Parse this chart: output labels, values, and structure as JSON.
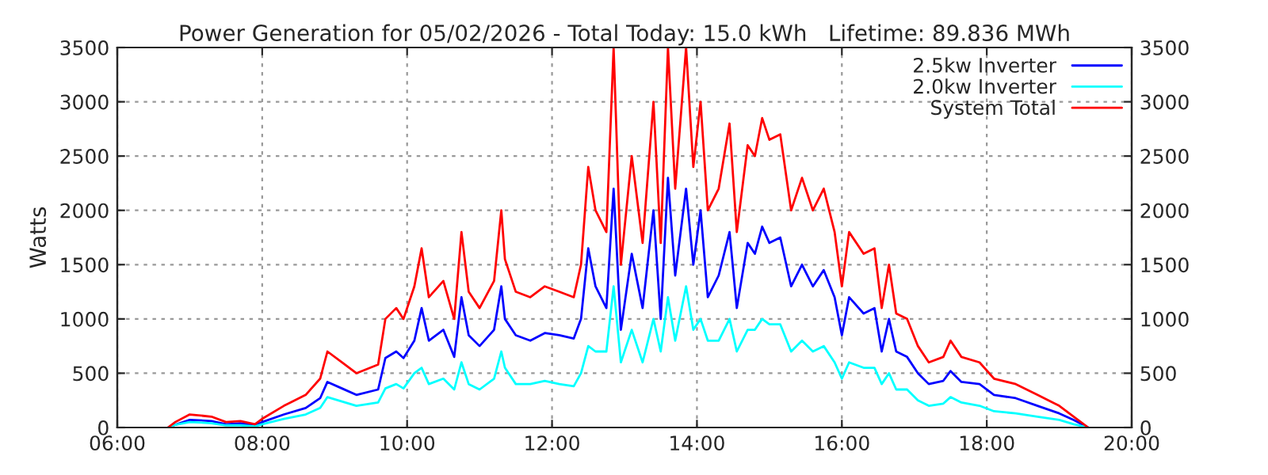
{
  "chart_data": {
    "type": "line",
    "title": "Power Generation for 05/02/2026 - Total Today: 15.0 kWh   Lifetime: 89.836 MWh",
    "ylabel": "Watts",
    "x": [
      6.7,
      6.8,
      7.0,
      7.3,
      7.5,
      7.7,
      7.9,
      8.0,
      8.3,
      8.6,
      8.8,
      8.9,
      9.1,
      9.3,
      9.6,
      9.7,
      9.85,
      9.95,
      10.1,
      10.2,
      10.3,
      10.5,
      10.65,
      10.75,
      10.85,
      11.0,
      11.2,
      11.3,
      11.35,
      11.5,
      11.7,
      11.9,
      12.1,
      12.3,
      12.4,
      12.5,
      12.6,
      12.75,
      12.85,
      12.95,
      13.1,
      13.25,
      13.4,
      13.5,
      13.6,
      13.7,
      13.85,
      13.95,
      14.05,
      14.15,
      14.3,
      14.45,
      14.55,
      14.7,
      14.8,
      14.9,
      15.0,
      15.15,
      15.3,
      15.45,
      15.6,
      15.75,
      15.9,
      16.0,
      16.1,
      16.3,
      16.45,
      16.55,
      16.65,
      16.75,
      16.9,
      17.05,
      17.2,
      17.4,
      17.5,
      17.65,
      17.9,
      18.1,
      18.4,
      18.7,
      19.0,
      19.2,
      19.4
    ],
    "series": [
      {
        "name": "2.5kw Inverter",
        "color": "#0000ff",
        "values": [
          0,
          25,
          70,
          60,
          30,
          40,
          20,
          50,
          120,
          180,
          270,
          420,
          360,
          300,
          350,
          640,
          700,
          640,
          800,
          1100,
          800,
          900,
          650,
          1200,
          850,
          750,
          900,
          1300,
          1000,
          850,
          800,
          870,
          850,
          820,
          1000,
          1650,
          1300,
          1100,
          2200,
          900,
          1600,
          1100,
          2000,
          1000,
          2300,
          1400,
          2200,
          1500,
          2000,
          1200,
          1400,
          1800,
          1100,
          1700,
          1600,
          1850,
          1700,
          1750,
          1300,
          1500,
          1300,
          1450,
          1200,
          850,
          1200,
          1050,
          1100,
          700,
          1000,
          700,
          650,
          500,
          400,
          430,
          520,
          420,
          400,
          300,
          270,
          200,
          130,
          70,
          0
        ]
      },
      {
        "name": "2.0kw Inverter",
        "color": "#00ffff",
        "values": [
          0,
          25,
          50,
          40,
          20,
          20,
          10,
          30,
          80,
          120,
          180,
          280,
          240,
          200,
          230,
          360,
          400,
          360,
          500,
          550,
          400,
          450,
          350,
          600,
          400,
          350,
          450,
          700,
          550,
          400,
          400,
          430,
          400,
          380,
          500,
          750,
          700,
          700,
          1300,
          600,
          900,
          600,
          1000,
          700,
          1200,
          800,
          1300,
          900,
          1000,
          800,
          800,
          1000,
          700,
          900,
          900,
          1000,
          950,
          950,
          700,
          800,
          700,
          750,
          600,
          450,
          600,
          550,
          550,
          400,
          500,
          350,
          350,
          250,
          200,
          220,
          280,
          230,
          200,
          150,
          130,
          100,
          70,
          30,
          0
        ]
      },
      {
        "name": "System Total",
        "color": "#ff0000",
        "values": [
          0,
          50,
          120,
          100,
          50,
          60,
          30,
          80,
          200,
          300,
          450,
          700,
          600,
          500,
          580,
          1000,
          1100,
          1000,
          1300,
          1650,
          1200,
          1350,
          1000,
          1800,
          1250,
          1100,
          1350,
          2000,
          1550,
          1250,
          1200,
          1300,
          1250,
          1200,
          1500,
          2400,
          2000,
          1800,
          3500,
          1500,
          2500,
          1700,
          3000,
          1700,
          3500,
          2200,
          3500,
          2400,
          3000,
          2000,
          2200,
          2800,
          1800,
          2600,
          2500,
          2850,
          2650,
          2700,
          2000,
          2300,
          2000,
          2200,
          1800,
          1300,
          1800,
          1600,
          1650,
          1100,
          1500,
          1050,
          1000,
          750,
          600,
          650,
          800,
          650,
          600,
          450,
          400,
          300,
          200,
          100,
          0
        ]
      }
    ],
    "xlim": [
      6,
      20
    ],
    "xticks": [
      {
        "value": 6,
        "label": "06:00"
      },
      {
        "value": 8,
        "label": "08:00"
      },
      {
        "value": 10,
        "label": "10:00"
      },
      {
        "value": 12,
        "label": "12:00"
      },
      {
        "value": 14,
        "label": "14:00"
      },
      {
        "value": 16,
        "label": "16:00"
      },
      {
        "value": 18,
        "label": "18:00"
      },
      {
        "value": 20,
        "label": "20:00"
      }
    ],
    "ylim": [
      0,
      3500
    ],
    "yticks": [
      0,
      500,
      1000,
      1500,
      2000,
      2500,
      3000,
      3500
    ],
    "y2lim": [
      0,
      3500
    ],
    "y2ticks": [
      0,
      500,
      1000,
      1500,
      2000,
      2500,
      3000,
      3500
    ],
    "grid": true,
    "legend": "top right",
    "line_style": "solid",
    "marker": "none"
  }
}
